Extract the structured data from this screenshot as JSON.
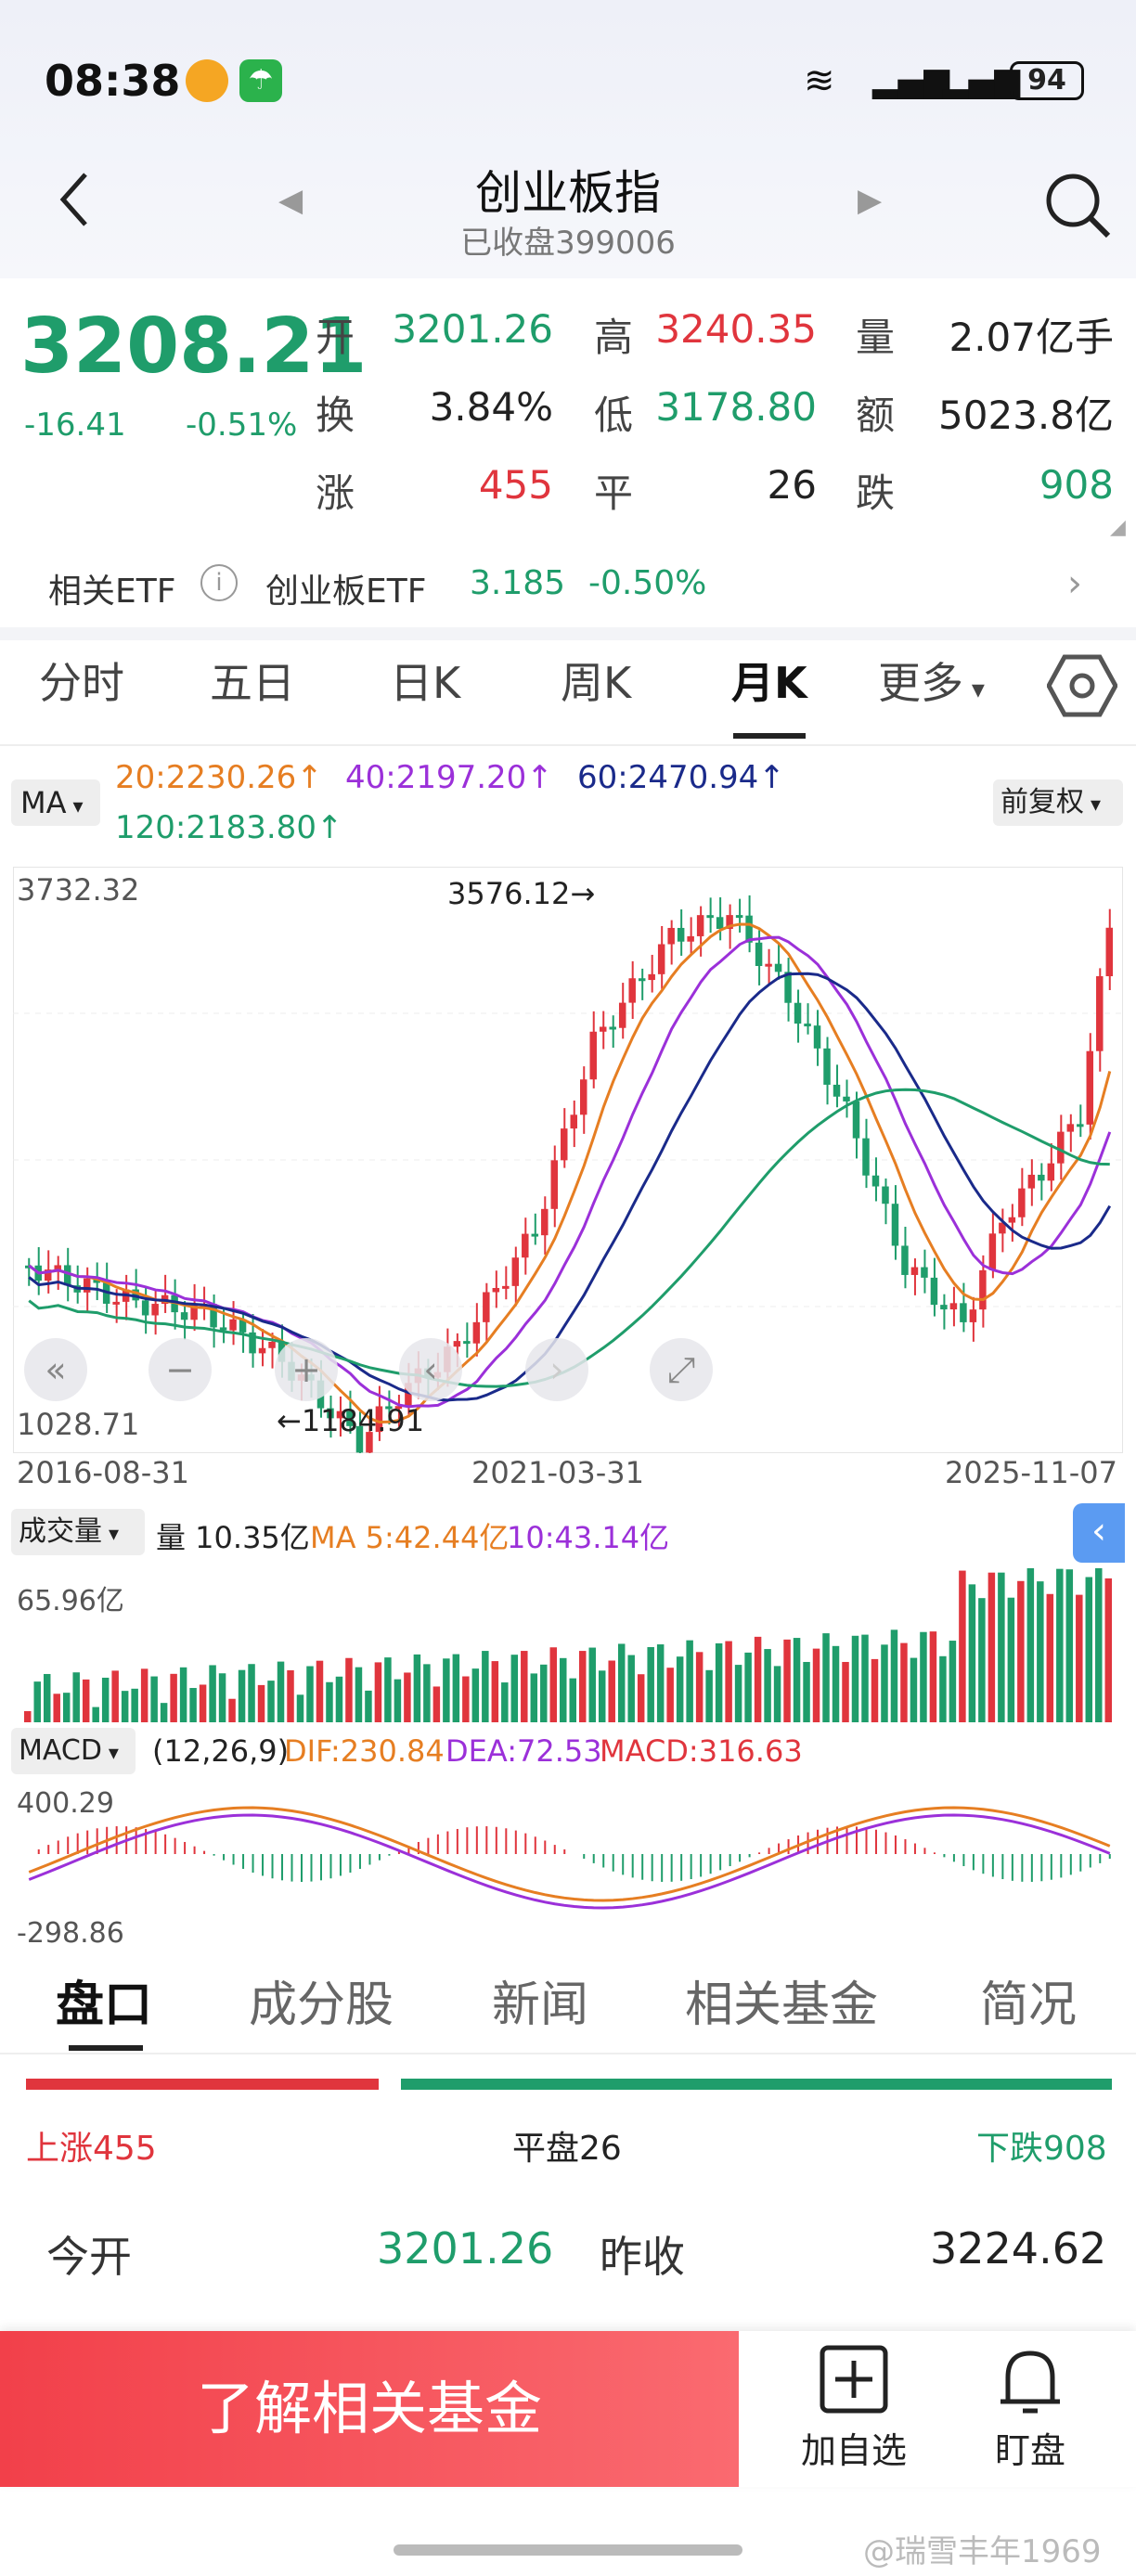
{
  "status": {
    "time": "08:38",
    "battery": "94"
  },
  "header": {
    "title": "创业板指",
    "subtitle": "已收盘399006"
  },
  "quote": {
    "price": "3208.21",
    "change": "-16.41",
    "pct": "-0.51%",
    "rows": [
      [
        {
          "l": "开",
          "v": "3201.26",
          "c": "g"
        },
        {
          "l": "高",
          "v": "3240.35",
          "c": "r"
        },
        {
          "l": "量",
          "v": "2.07亿手",
          "c": "k"
        }
      ],
      [
        {
          "l": "换",
          "v": "3.84%",
          "c": "k"
        },
        {
          "l": "低",
          "v": "3178.80",
          "c": "g"
        },
        {
          "l": "额",
          "v": "5023.8亿",
          "c": "k"
        }
      ],
      [
        {
          "l": "涨",
          "v": "455",
          "c": "r"
        },
        {
          "l": "平",
          "v": "26",
          "c": "k"
        },
        {
          "l": "跌",
          "v": "908",
          "c": "g"
        }
      ]
    ]
  },
  "etf": {
    "label": "相关ETF",
    "name": "创业板ETF",
    "price": "3.185",
    "pct": "-0.50%"
  },
  "tabs": [
    "分时",
    "五日",
    "日K",
    "周K",
    "月K",
    "更多"
  ],
  "ma": {
    "btn": "MA",
    "m20": "20:2230.26↑",
    "m40": "40:2197.20↑",
    "m60": "60:2470.94↑",
    "m120": "120:2183.80↑",
    "adj": "前复权"
  },
  "chart_data": {
    "type": "candlestick",
    "ylim": [
      1028.71,
      3732.32
    ],
    "ymax_label": "3732.32",
    "ymin_label": "1028.71",
    "high_note": "3576.12→",
    "low_note": "←1184.91",
    "x_labels": [
      "2016-08-31",
      "2021-03-31",
      "2025-11-07"
    ],
    "volume": {
      "btn": "成交量",
      "vol": "量 10.35亿",
      "ma5": "MA 5:42.44亿",
      "ma10": "10:43.14亿",
      "max": "65.96亿"
    },
    "macd": {
      "btn": "MACD",
      "params": "(12,26,9)",
      "dif": "DIF:230.84",
      "dea": "DEA:72.53",
      "macd": "MACD:316.63",
      "max": "400.29",
      "min": "-298.86"
    }
  },
  "bottom_tabs": [
    "盘口",
    "成分股",
    "新闻",
    "相关基金",
    "简况"
  ],
  "breadth": {
    "up": "上涨455",
    "flat": "平盘26",
    "down": "下跌908"
  },
  "detail": {
    "open_l": "今开",
    "open_v": "3201.26",
    "prev_l": "昨收",
    "prev_v": "3224.62"
  },
  "footer": {
    "cta": "了解相关基金",
    "add": "加自选",
    "watch": "盯盘"
  },
  "watermark": "@瑞雪丰年1969"
}
